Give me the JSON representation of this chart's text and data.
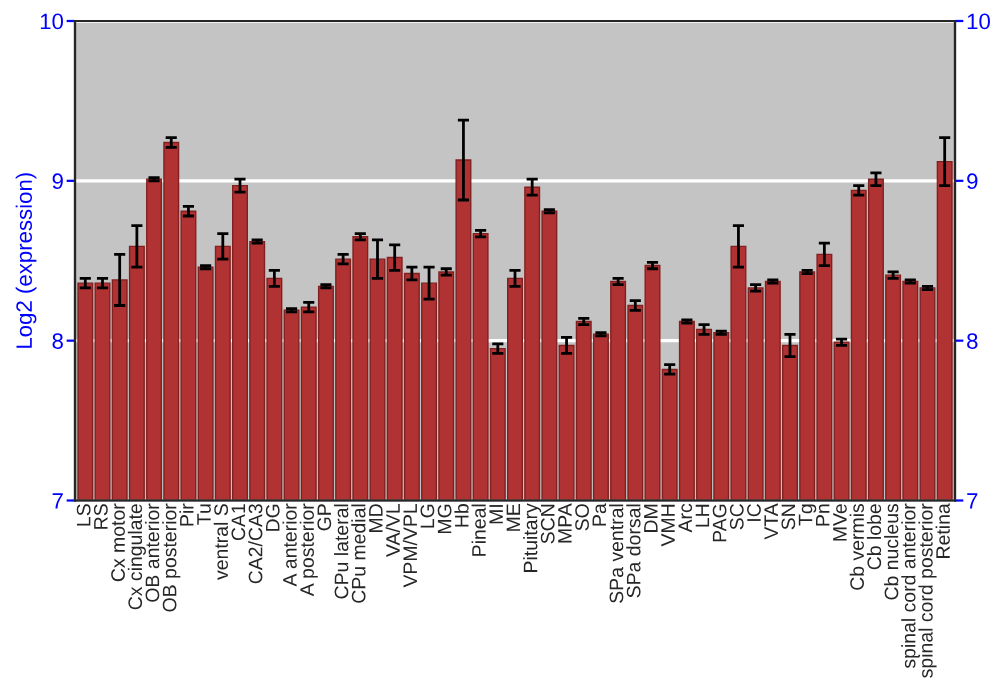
{
  "chart_data": {
    "type": "bar",
    "ylabel": "Log2 (expression)",
    "categories": [
      "LS",
      "RS",
      "Cx motor",
      "Cx cingulate",
      "OB anterior",
      "OB posterior",
      "Pir",
      "Tu",
      "ventral S",
      "CA1",
      "CA2/CA3",
      "DG",
      "A anterior",
      "A posterior",
      "GP",
      "CPu lateral",
      "CPu medial",
      "MD",
      "VA/VL",
      "VPM/VPL",
      "LG",
      "MG",
      "Hb",
      "Pineal",
      "MI",
      "ME",
      "Pituitary",
      "SCN",
      "MPA",
      "SO",
      "Pa",
      "SPa ventral",
      "SPa dorsal",
      "DM",
      "VMH",
      "Arc",
      "LH",
      "PAG",
      "SC",
      "IC",
      "VTA",
      "SN",
      "Tg",
      "Pn",
      "MVe",
      "Cb vermis",
      "Cb lobe",
      "Cb nucleus",
      "spinal cord anterior",
      "spinal cord posterior",
      "Retina"
    ],
    "series": [
      {
        "color": "#b03232",
        "values": [
          8.36,
          8.36,
          8.38,
          8.59,
          9.01,
          9.24,
          8.81,
          8.46,
          8.59,
          8.97,
          8.62,
          8.39,
          8.19,
          8.21,
          8.34,
          8.51,
          8.65,
          8.51,
          8.52,
          8.42,
          8.36,
          8.43,
          9.13,
          8.67,
          7.95,
          8.39,
          8.96,
          8.81,
          7.97,
          8.12,
          8.04,
          8.37,
          8.22,
          8.47,
          7.82,
          8.12,
          8.07,
          8.05,
          8.59,
          8.33,
          8.37,
          7.97,
          8.43,
          8.54,
          7.99,
          8.94,
          9.01,
          8.41,
          8.37,
          8.33,
          9.12
        ],
        "errors": [
          0.03,
          0.03,
          0.16,
          0.13,
          0.01,
          0.03,
          0.03,
          0.01,
          0.08,
          0.04,
          0.01,
          0.05,
          0.01,
          0.03,
          0.01,
          0.03,
          0.02,
          0.12,
          0.08,
          0.04,
          0.1,
          0.02,
          0.25,
          0.02,
          0.03,
          0.05,
          0.05,
          0.01,
          0.05,
          0.02,
          0.01,
          0.02,
          0.03,
          0.02,
          0.03,
          0.01,
          0.03,
          0.01,
          0.13,
          0.02,
          0.01,
          0.07,
          0.01,
          0.07,
          0.02,
          0.03,
          0.04,
          0.02,
          0.01,
          0.01,
          0.15
        ]
      }
    ],
    "ylim": [
      7,
      10
    ],
    "yticks": [
      7,
      8,
      9,
      10
    ],
    "y2lim": [
      7,
      10
    ],
    "y2ticks": [
      7,
      8,
      9,
      10
    ],
    "grid": "y"
  }
}
